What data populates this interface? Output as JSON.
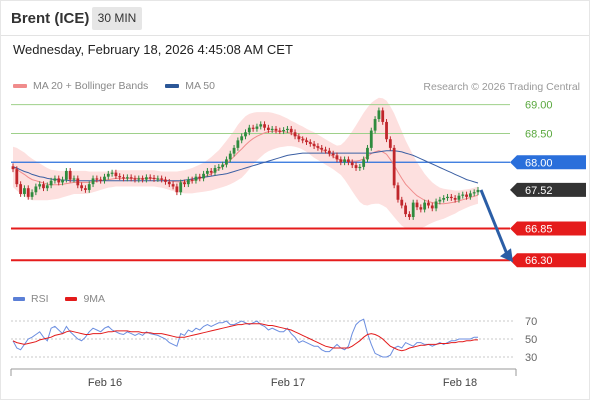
{
  "header": {
    "title": "Brent (ICE)",
    "timeframe": "30 MIN"
  },
  "timestamp": "Wednesday, February 18, 2026 4:45:08 AM CET",
  "legend": {
    "items": [
      {
        "label": "MA 20 + Bollinger Bands",
        "color": "#f08c8c"
      },
      {
        "label": "MA 50",
        "color": "#2b5797"
      }
    ],
    "credit": "Research © 2026 Trading Central"
  },
  "rsi_legend": {
    "items": [
      {
        "label": "RSI",
        "color": "#5b7fd6"
      },
      {
        "label": "9MA",
        "color": "#e31b1b"
      }
    ]
  },
  "colors": {
    "up": "#2e8b3e",
    "down": "#c0262b",
    "support": "#e51c1c",
    "pivot": "#2a6fdb",
    "resistance": "#9ed08a",
    "arrow": "#2b5ea6"
  },
  "chart_data": {
    "type": "candlestick",
    "x_tick_labels": [
      "Feb 16",
      "Feb 17",
      "Feb 18"
    ],
    "ylim": [
      66.2,
      69.15
    ],
    "levels": [
      {
        "label": "69.00",
        "value": 69.0,
        "kind": "resistance"
      },
      {
        "label": "68.50",
        "value": 68.5,
        "kind": "resistance"
      },
      {
        "label": "68.00",
        "value": 68.0,
        "kind": "pivot"
      },
      {
        "label": "67.52",
        "value": 67.52,
        "kind": "last"
      },
      {
        "label": "66.85",
        "value": 66.85,
        "kind": "support"
      },
      {
        "label": "66.30",
        "value": 66.3,
        "kind": "support"
      }
    ],
    "close": [
      67.88,
      67.62,
      67.45,
      67.55,
      67.4,
      67.48,
      67.58,
      67.62,
      67.55,
      67.6,
      67.68,
      67.72,
      67.65,
      67.7,
      67.85,
      67.7,
      67.72,
      67.6,
      67.55,
      67.52,
      67.62,
      67.72,
      67.7,
      67.68,
      67.75,
      67.8,
      67.82,
      67.76,
      67.74,
      67.72,
      67.74,
      67.72,
      67.7,
      67.72,
      67.7,
      67.74,
      67.73,
      67.71,
      67.72,
      67.7,
      67.66,
      67.62,
      67.58,
      67.48,
      67.65,
      67.62,
      67.7,
      67.68,
      67.75,
      67.72,
      67.8,
      67.85,
      67.82,
      67.9,
      67.92,
      67.96,
      68.05,
      68.15,
      68.25,
      68.38,
      68.45,
      68.52,
      68.6,
      68.58,
      68.62,
      68.66,
      68.6,
      68.56,
      68.58,
      68.55,
      68.54,
      68.56,
      68.58,
      68.52,
      68.45,
      68.4,
      68.38,
      68.35,
      68.32,
      68.28,
      68.25,
      68.22,
      68.2,
      68.15,
      68.12,
      68.05,
      68.0,
      68.05,
      68.0,
      67.95,
      67.9,
      67.92,
      68.05,
      68.25,
      68.55,
      68.75,
      68.9,
      68.7,
      68.4,
      68.25,
      67.6,
      67.35,
      67.25,
      67.1,
      67.05,
      67.3,
      67.22,
      67.18,
      67.3,
      67.25,
      67.2,
      67.32,
      67.35,
      67.38,
      67.4,
      67.38,
      67.35,
      67.42,
      67.44,
      67.4,
      67.46,
      67.48,
      67.52
    ],
    "ma20": [
      67.92,
      67.88,
      67.83,
      67.79,
      67.74,
      67.7,
      67.68,
      67.66,
      67.64,
      67.62,
      67.61,
      67.61,
      67.61,
      67.62,
      67.63,
      67.64,
      67.65,
      67.65,
      67.65,
      67.65,
      67.65,
      67.66,
      67.67,
      67.68,
      67.69,
      67.7,
      67.71,
      67.72,
      67.72,
      67.72,
      67.72,
      67.72,
      67.72,
      67.72,
      67.72,
      67.72,
      67.72,
      67.72,
      67.71,
      67.7,
      67.69,
      67.68,
      67.67,
      67.66,
      67.66,
      67.66,
      67.67,
      67.68,
      67.7,
      67.72,
      67.74,
      67.77,
      67.8,
      67.84,
      67.88,
      67.93,
      67.98,
      68.04,
      68.1,
      68.17,
      68.23,
      68.3,
      68.36,
      68.41,
      68.45,
      68.48,
      68.51,
      68.53,
      68.54,
      68.54,
      68.54,
      68.53,
      68.52,
      68.5,
      68.48,
      68.45,
      68.42,
      68.38,
      68.34,
      68.3,
      68.26,
      68.22,
      68.18,
      68.14,
      68.1,
      68.06,
      68.04,
      68.03,
      68.02,
      68.02,
      68.02,
      68.03,
      68.06,
      68.1,
      68.15,
      68.18,
      68.2,
      68.18,
      68.14,
      68.05,
      67.95,
      67.83,
      67.72,
      67.62,
      67.55,
      67.48,
      67.42,
      67.38,
      67.34,
      67.32,
      67.3,
      67.29,
      67.28,
      67.28,
      67.29,
      67.3,
      67.31,
      67.33,
      67.35,
      67.37,
      67.39,
      67.41,
      67.43
    ],
    "ma50": [
      67.92,
      67.9,
      67.87,
      67.84,
      67.82,
      67.79,
      67.77,
      67.75,
      67.74,
      67.72,
      67.71,
      67.7,
      67.7,
      67.69,
      67.69,
      67.68,
      67.68,
      67.68,
      67.68,
      67.68,
      67.68,
      67.68,
      67.68,
      67.68,
      67.68,
      67.68,
      67.68,
      67.68,
      67.68,
      67.68,
      67.68,
      67.68,
      67.68,
      67.68,
      67.68,
      67.68,
      67.68,
      67.68,
      67.68,
      67.68,
      67.68,
      67.68,
      67.68,
      67.68,
      67.68,
      67.69,
      67.7,
      67.71,
      67.72,
      67.73,
      67.74,
      67.75,
      67.76,
      67.77,
      67.78,
      67.79,
      67.8,
      67.82,
      67.84,
      67.86,
      67.88,
      67.9,
      67.92,
      67.94,
      67.96,
      67.98,
      68.0,
      68.02,
      68.04,
      68.06,
      68.08,
      68.1,
      68.12,
      68.13,
      68.14,
      68.15,
      68.16,
      68.16,
      68.16,
      68.16,
      68.16,
      68.16,
      68.16,
      68.16,
      68.16,
      68.16,
      68.16,
      68.16,
      68.16,
      68.16,
      68.16,
      68.16,
      68.16,
      68.16,
      68.16,
      68.17,
      68.18,
      68.19,
      68.2,
      68.2,
      68.2,
      68.19,
      68.18,
      68.16,
      68.14,
      68.12,
      68.09,
      68.06,
      68.03,
      68.0,
      67.97,
      67.94,
      67.91,
      67.88,
      67.85,
      67.82,
      67.79,
      67.76,
      67.73,
      67.7,
      67.68,
      67.66,
      67.64
    ],
    "bb_width": [
      0.35,
      0.37,
      0.38,
      0.38,
      0.37,
      0.36,
      0.34,
      0.32,
      0.3,
      0.28,
      0.26,
      0.25,
      0.24,
      0.23,
      0.22,
      0.21,
      0.2,
      0.2,
      0.2,
      0.2,
      0.19,
      0.18,
      0.17,
      0.16,
      0.15,
      0.14,
      0.14,
      0.14,
      0.14,
      0.14,
      0.14,
      0.14,
      0.14,
      0.14,
      0.14,
      0.14,
      0.14,
      0.14,
      0.14,
      0.14,
      0.15,
      0.16,
      0.17,
      0.18,
      0.19,
      0.2,
      0.21,
      0.22,
      0.23,
      0.24,
      0.25,
      0.27,
      0.29,
      0.31,
      0.33,
      0.36,
      0.39,
      0.42,
      0.45,
      0.48,
      0.5,
      0.5,
      0.48,
      0.45,
      0.42,
      0.39,
      0.36,
      0.34,
      0.32,
      0.3,
      0.28,
      0.26,
      0.24,
      0.22,
      0.21,
      0.2,
      0.2,
      0.2,
      0.21,
      0.22,
      0.22,
      0.22,
      0.22,
      0.22,
      0.22,
      0.23,
      0.26,
      0.33,
      0.42,
      0.52,
      0.62,
      0.72,
      0.8,
      0.85,
      0.88,
      0.9,
      0.92,
      0.93,
      0.93,
      0.92,
      0.9,
      0.86,
      0.82,
      0.76,
      0.7,
      0.64,
      0.58,
      0.52,
      0.46,
      0.4,
      0.35,
      0.31,
      0.28,
      0.26,
      0.24,
      0.22,
      0.2,
      0.18,
      0.17,
      0.16,
      0.15,
      0.15,
      0.15,
      0.15
    ],
    "forecast": {
      "from": 67.52,
      "to": 66.3
    },
    "rsi": {
      "ylim": [
        20,
        80
      ],
      "ticks": [
        70,
        50,
        30
      ],
      "rsi": [
        48,
        40,
        38,
        44,
        50,
        52,
        55,
        58,
        52,
        48,
        62,
        64,
        60,
        56,
        64,
        58,
        54,
        50,
        48,
        52,
        58,
        62,
        60,
        58,
        62,
        64,
        60,
        58,
        56,
        55,
        58,
        56,
        54,
        56,
        54,
        58,
        56,
        55,
        54,
        52,
        50,
        46,
        44,
        42,
        56,
        54,
        60,
        58,
        62,
        60,
        64,
        66,
        64,
        66,
        68,
        68,
        70,
        66,
        66,
        68,
        70,
        68,
        66,
        68,
        70,
        66,
        64,
        60,
        62,
        60,
        58,
        58,
        62,
        56,
        52,
        46,
        48,
        46,
        44,
        42,
        42,
        38,
        36,
        36,
        40,
        44,
        40,
        38,
        42,
        56,
        66,
        70,
        72,
        56,
        44,
        34,
        32,
        30,
        30,
        32,
        40,
        42,
        40,
        46,
        44,
        42,
        46,
        46,
        44,
        44,
        42,
        44,
        46,
        44,
        46,
        48,
        48,
        50,
        50,
        50,
        50,
        52,
        52
      ],
      "ma9": [
        48,
        46,
        45,
        44,
        45,
        46,
        47,
        49,
        50,
        51,
        52,
        54,
        55,
        56,
        58,
        59,
        58,
        57,
        56,
        55,
        55,
        56,
        56,
        56,
        57,
        58,
        58,
        59,
        59,
        59,
        59,
        58,
        58,
        58,
        57,
        57,
        57,
        56,
        56,
        56,
        55,
        54,
        53,
        52,
        52,
        52,
        53,
        54,
        55,
        56,
        57,
        58,
        59,
        60,
        61,
        62,
        63,
        64,
        65,
        66,
        66,
        67,
        67,
        67,
        67,
        67,
        66,
        65,
        65,
        64,
        63,
        62,
        61,
        60,
        58,
        56,
        54,
        52,
        50,
        48,
        46,
        44,
        42,
        41,
        40,
        40,
        40,
        40,
        40,
        42,
        45,
        48,
        52,
        55,
        56,
        55,
        53,
        50,
        46,
        42,
        40,
        38,
        37,
        38,
        40,
        41,
        42,
        43,
        43,
        44,
        44,
        44,
        45,
        45,
        45,
        46,
        46,
        47,
        47,
        48,
        48,
        49,
        49
      ]
    }
  }
}
